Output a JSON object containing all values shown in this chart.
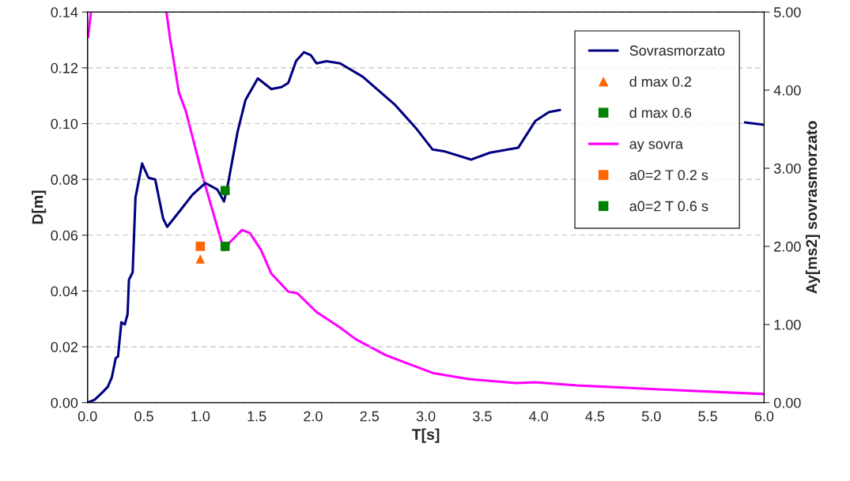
{
  "chart_data": {
    "type": "line",
    "xlabel": "T[s]",
    "ylabel": "D[m]",
    "y2label": "Ay[ms2] sovrasmorzato",
    "xlim": [
      0,
      6
    ],
    "xticks": [
      {
        "value": 0,
        "label": "0.0"
      },
      {
        "value": 0.5,
        "label": "0.5"
      },
      {
        "value": 1,
        "label": "1.0"
      },
      {
        "value": 1.5,
        "label": "1.5"
      },
      {
        "value": 2,
        "label": "2.0"
      },
      {
        "value": 2.5,
        "label": "2.5"
      },
      {
        "value": 3,
        "label": "3.0"
      },
      {
        "value": 3.5,
        "label": "3.5"
      },
      {
        "value": 4,
        "label": "4.0"
      },
      {
        "value": 4.5,
        "label": "4.5"
      },
      {
        "value": 5,
        "label": "5.0"
      },
      {
        "value": 5.5,
        "label": "5.5"
      },
      {
        "value": 6,
        "label": "6.0"
      }
    ],
    "ylim": [
      0,
      0.14
    ],
    "yticks": [
      {
        "value": 0,
        "label": "0.00"
      },
      {
        "value": 0.02,
        "label": "0.02"
      },
      {
        "value": 0.04,
        "label": "0.04"
      },
      {
        "value": 0.06,
        "label": "0.06"
      },
      {
        "value": 0.08,
        "label": "0.08"
      },
      {
        "value": 0.1,
        "label": "0.10"
      },
      {
        "value": 0.12,
        "label": "0.12"
      },
      {
        "value": 0.14,
        "label": "0.14"
      }
    ],
    "y2lim": [
      0,
      5
    ],
    "y2ticks": [
      {
        "value": 0,
        "label": "0.00"
      },
      {
        "value": 1,
        "label": "1.00"
      },
      {
        "value": 2,
        "label": "2.00"
      },
      {
        "value": 3,
        "label": "3.00"
      },
      {
        "value": 4,
        "label": "4.00"
      },
      {
        "value": 5,
        "label": "5.00"
      }
    ],
    "grid": "y",
    "legend": "top right",
    "series": [
      {
        "name": "Sovrasmorzato",
        "marker": "none",
        "color": "#000080",
        "x": [
          0,
          0.063,
          0.133,
          0.18,
          0.215,
          0.25,
          0.27,
          0.3,
          0.33,
          0.355,
          0.367,
          0.4,
          0.425,
          0.484,
          0.54,
          0.6,
          0.67,
          0.706,
          0.82,
          0.93,
          1.045,
          1.15,
          1.21,
          1.245,
          1.33,
          1.4,
          1.51,
          1.63,
          1.72,
          1.78,
          1.85,
          1.92,
          1.98,
          2.03,
          2.12,
          2.24,
          2.44,
          2.73,
          2.92,
          3.06,
          3.17,
          3.4,
          3.57,
          3.82,
          3.97,
          4.09,
          4.19,
          5.0,
          5.83,
          6.0
        ],
        "values": [
          0,
          0.001,
          0.0037,
          0.0057,
          0.009,
          0.016,
          0.0165,
          0.0288,
          0.028,
          0.0317,
          0.044,
          0.0467,
          0.0735,
          0.0857,
          0.0806,
          0.08,
          0.066,
          0.063,
          0.0688,
          0.0745,
          0.0787,
          0.0764,
          0.0721,
          0.0783,
          0.097,
          0.1084,
          0.1162,
          0.1124,
          0.1131,
          0.1146,
          0.1225,
          0.1256,
          0.1245,
          0.1216,
          0.1224,
          0.1216,
          0.1168,
          0.1066,
          0.098,
          0.0907,
          0.09,
          0.0871,
          0.0896,
          0.0914,
          0.1009,
          0.1041,
          0.1049,
          null,
          0.1004,
          0.0996
        ]
      },
      {
        "name": "d max 0.2",
        "type": "scatter",
        "marker": "triangle",
        "color": "#ff6600",
        "x": [
          1.0
        ],
        "values": [
          0.0515
        ]
      },
      {
        "name": "d max 0.6",
        "type": "scatter",
        "marker": "square",
        "color": "#008000",
        "x": [
          1.22
        ],
        "values": [
          0.076
        ]
      },
      {
        "name": "ay sovra",
        "axis": "y2",
        "marker": "none",
        "color": "#ff00ff",
        "x": [
          0.005,
          0.03,
          0.3,
          0.7,
          0.73,
          0.81,
          0.87,
          1.02,
          1.21,
          1.26,
          1.37,
          1.44,
          1.54,
          1.63,
          1.78,
          1.86,
          2.03,
          2.24,
          2.38,
          2.64,
          3.06,
          3.38,
          3.8,
          3.97,
          4.34,
          5.07,
          6.0
        ],
        "values": [
          4.68,
          5.0,
          null,
          5.0,
          4.68,
          3.97,
          3.74,
          2.9,
          1.95,
          2.05,
          2.21,
          2.17,
          1.95,
          1.65,
          1.42,
          1.4,
          1.16,
          0.96,
          0.81,
          0.61,
          0.38,
          0.3,
          0.25,
          0.26,
          0.22,
          0.17,
          0.11
        ]
      },
      {
        "name": "a0=2 T 0.2 s",
        "type": "scatter",
        "marker": "square",
        "color": "#ff6600",
        "x": [
          1.0
        ],
        "values": [
          0.056
        ]
      },
      {
        "name": "a0=2 T 0.6 s",
        "type": "scatter",
        "marker": "square",
        "color": "#008000",
        "x": [
          1.22
        ],
        "values": [
          0.056
        ]
      }
    ]
  }
}
